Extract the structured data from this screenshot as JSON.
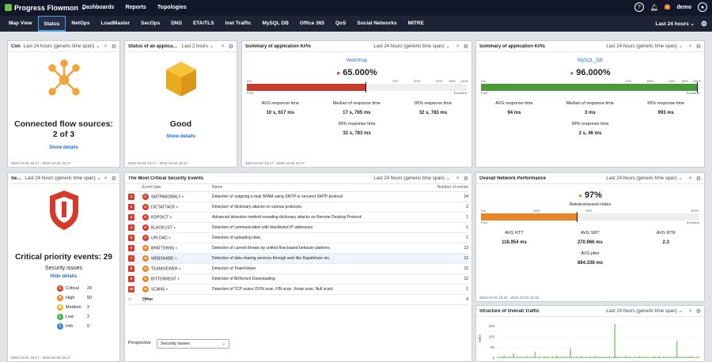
{
  "topbar": {
    "brand": "Progress Flowmon",
    "nav": [
      "Dashboards",
      "Reports",
      "Topologies"
    ],
    "notifications": "2",
    "user": "demo"
  },
  "tabs": [
    {
      "label": "Map View"
    },
    {
      "label": "Status"
    },
    {
      "label": "NetOps"
    },
    {
      "label": "LoadMaster"
    },
    {
      "label": "SecOps"
    },
    {
      "label": "DNS"
    },
    {
      "label": "ETA/TLS"
    },
    {
      "label": "Inet Traffic"
    },
    {
      "label": "MySQL DB"
    },
    {
      "label": "Office 365"
    },
    {
      "label": "QoS"
    },
    {
      "label": "Social Networks"
    },
    {
      "label": "MITRE"
    }
  ],
  "global_range": "Last 24 hours",
  "panels": {
    "flow_sources": {
      "title": "Connected flow sources",
      "title_short": "Con",
      "range": "Last 24 hours (generic time span)",
      "headline": "Connected flow sources:",
      "count": "2 of 3",
      "link": "Show details",
      "footer": "2024-10-01 15:17 - 2024-10-02 15:17"
    },
    "app_status": {
      "title": "Status of all applications",
      "range": "Last 2 hours",
      "status": "Good",
      "link": "Show details",
      "footer": "2024-10-02 13:17 - 2024-10-02 15:17"
    },
    "kpi_webshop": {
      "title": "Summary of application KPIs",
      "range": "Last 24 hours (generic time span)",
      "app": "WebShop",
      "value": "65.000%",
      "poor": "Poor",
      "excellent": "Excellent",
      "stats": [
        {
          "label": "AVG response time",
          "value": "10 s, 617 ms"
        },
        {
          "label": "Median of response time",
          "value": "17 s, 785 ms"
        },
        {
          "label": "95% response time",
          "value": "32 s, 783 ms"
        },
        {
          "label": "99% response time",
          "value": "32 s, 783 ms"
        }
      ],
      "footer": "2024-10-01 15:17 - 2024-10-02 15:17"
    },
    "kpi_mysql": {
      "title": "Summary of application KPIs",
      "range": "Last 24 hours (generic time span)",
      "app": "MySQL_DB",
      "value": "96.000%",
      "poor": "Poor",
      "excellent": "Excellent",
      "stats": [
        {
          "label": "AVG response time",
          "value": "94 ms"
        },
        {
          "label": "Median of response time",
          "value": "3 ms"
        },
        {
          "label": "95% response time",
          "value": "993 ms"
        },
        {
          "label": "99% response time",
          "value": "2 s, 46 ms"
        }
      ],
      "footer": "2024-10-01 15:17 - 2024-10-02 15:17"
    },
    "security": {
      "title_short": "Secu",
      "range": "Last 24 hours (generic time span)",
      "headline": "Critical priority events: 29",
      "sub": "Security issues",
      "link": "Hide details",
      "levels": [
        {
          "letter": "C",
          "label": "Critical",
          "count": "29",
          "color": "#d63a2b"
        },
        {
          "letter": "H",
          "label": "High",
          "count": "50",
          "color": "#e8852a"
        },
        {
          "letter": "M",
          "label": "Medium",
          "count": "2",
          "color": "#e8b21f"
        },
        {
          "letter": "L",
          "label": "Low",
          "count": "2",
          "color": "#4caf50"
        },
        {
          "letter": "I",
          "label": "Info",
          "count": "0",
          "color": "#3b86d6"
        }
      ],
      "footer": "2024-10-01 15:17 - 2024-10-02 15:17"
    },
    "events": {
      "title": "The Most Critical Security Events",
      "range": "Last 24 hours (generic time span)",
      "columns": [
        "Event type",
        "Name",
        "Number of events"
      ],
      "rows": [
        {
          "rank": "1",
          "cat": "C",
          "type": "SMTPANOMALY",
          "name": "Detection of outgoing e-mail SPAM using SMTP or secured SMTP protocol",
          "count": "24"
        },
        {
          "rank": "2",
          "cat": "C",
          "type": "DICTATTACK",
          "name": "Detection of dictionary attacks on various protocols.",
          "count": "2"
        },
        {
          "rank": "3",
          "cat": "C",
          "type": "RDPDICT",
          "name": "Advanced detection method revealing dictionary attacks on Remote Desktop Protocol",
          "count": "1"
        },
        {
          "rank": "4",
          "cat": "C",
          "type": "BLACKLIST",
          "name": "Detection of communication with blacklisted IP addresses",
          "count": "1"
        },
        {
          "rank": "5",
          "cat": "C",
          "type": "UPLOAD",
          "name": "Detection of uploading data",
          "count": "1"
        },
        {
          "rank": "6",
          "cat": "H",
          "type": "BPATTERNS",
          "name": "Detection of current threats by unified flow-based behavior patterns.",
          "count": "13"
        },
        {
          "rank": "7",
          "cat": "H",
          "type": "WEBSHARE",
          "name": "Detection of data sharing services through web like Rapidshare etc.",
          "count": "12"
        },
        {
          "rank": "8",
          "cat": "H",
          "type": "TEAMVIEWER",
          "name": "Detection of TeamViewer",
          "count": "12"
        },
        {
          "rank": "9",
          "cat": "H",
          "type": "BITTORRENT",
          "name": "Detection of BitTorrent Downloading",
          "count": "12"
        },
        {
          "rank": "10",
          "cat": "H",
          "type": "SCANS",
          "name": "Detection of TCP scans (SYN scan, FIN scan, Xmas scan, Null scan)",
          "count": "1"
        }
      ],
      "other_label": "Other",
      "other_count": "4",
      "perspective_label": "Perspective",
      "perspective_value": "Security issues"
    },
    "network": {
      "title": "Overall Network Performance",
      "range": "Last 24 hours (generic time span)",
      "value": "97%",
      "metric": "Retransmission index",
      "poor": "Poor",
      "excellent": "Excellent",
      "stats": [
        {
          "label": "AVG RTT",
          "value": "118.954 ms"
        },
        {
          "label": "AVG SRT",
          "value": "270.966 ms"
        },
        {
          "label": "AVG RTR",
          "value": "2.3"
        },
        {
          "label": "AVG jitter",
          "value": "884.338 ms"
        }
      ],
      "footer": "2024-10-01 15:15 - 2024-10-02 15:15"
    },
    "traffic": {
      "title": "Structure of Overall Traffic",
      "range": "Last 24 hours (generic time span)"
    }
  },
  "gauge_ticks": [
    "0%",
    "70%",
    "80%",
    "90%",
    "95%",
    "100%"
  ],
  "kpi_levels": {
    "webshop": 0.65,
    "mysql": 0.96,
    "network": 0.97
  },
  "chart_data": {
    "type": "bar",
    "ylabel": "Mb/s",
    "y_ticks": [
      "150",
      "100",
      "50",
      "0"
    ],
    "ylim": [
      0,
      170
    ],
    "values": [
      4,
      6,
      3,
      8,
      5,
      12,
      4,
      7,
      3,
      9,
      5,
      4,
      22,
      6,
      3,
      8,
      4,
      5,
      7,
      3,
      6,
      4,
      9,
      5,
      3,
      7,
      4,
      6,
      30,
      5,
      4,
      8,
      6,
      3,
      5,
      9,
      4,
      7,
      5,
      3,
      6,
      8,
      4,
      5,
      12,
      6,
      4,
      7,
      3,
      5,
      8,
      4,
      6,
      5,
      45,
      7,
      4,
      6,
      3,
      8,
      5,
      4,
      9,
      6,
      3,
      7,
      5,
      4,
      8,
      6,
      5,
      3,
      7,
      10,
      4,
      6,
      5,
      8,
      3,
      7,
      4,
      6,
      5,
      9,
      4,
      3,
      7,
      160,
      8,
      5,
      6,
      4,
      7,
      3,
      5,
      9,
      6,
      4,
      8,
      5,
      3,
      6,
      7,
      4,
      5,
      9,
      6,
      3,
      8,
      4,
      7,
      5,
      6,
      4,
      3,
      8,
      5,
      7,
      4,
      6,
      9,
      5,
      3,
      7,
      4,
      6,
      5,
      8,
      4,
      7,
      3,
      6,
      5,
      80,
      4,
      7,
      5,
      6,
      3,
      8,
      4,
      5,
      7,
      6,
      9,
      4,
      5,
      3,
      7,
      6
    ]
  }
}
